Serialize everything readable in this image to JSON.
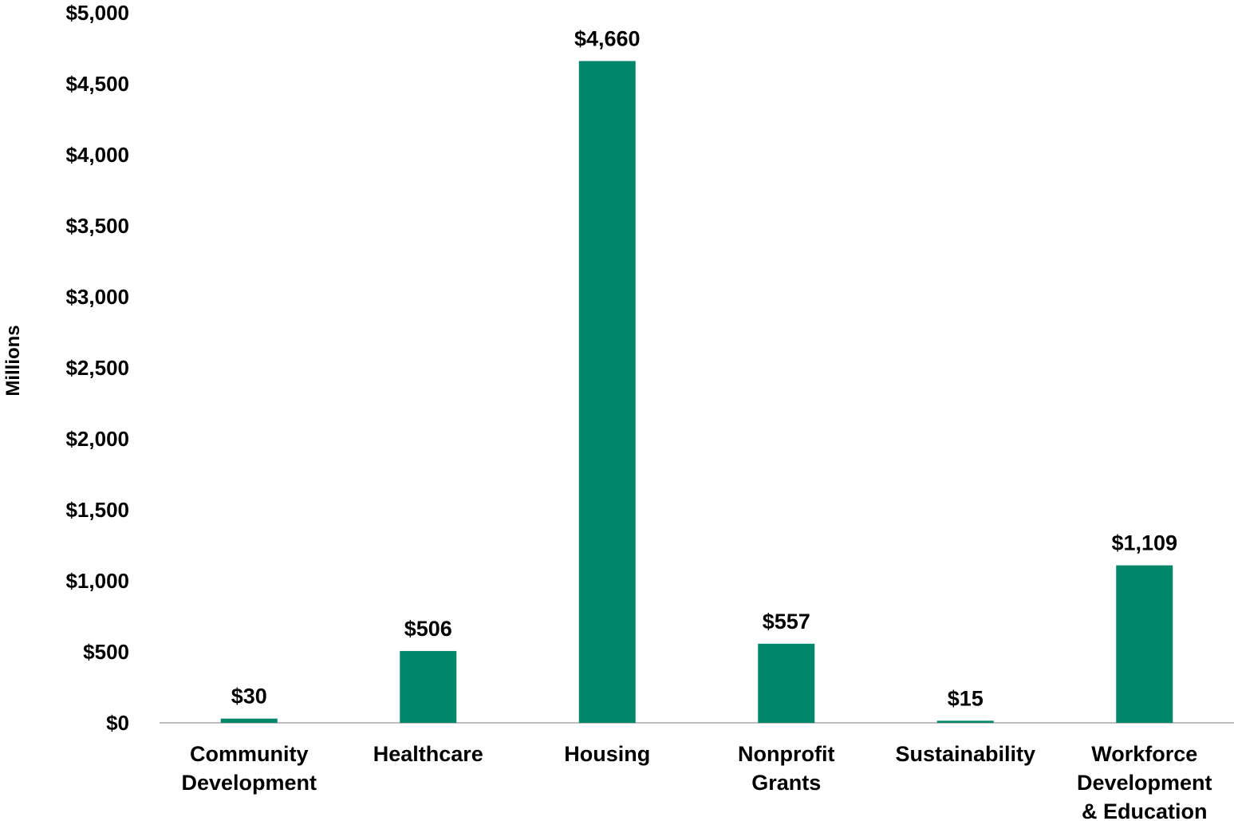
{
  "chart_data": {
    "type": "bar",
    "ylabel": "Millions",
    "ylim": [
      0,
      5000
    ],
    "ytick_step": 500,
    "yticks": [
      "$0",
      "$500",
      "$1,000",
      "$1,500",
      "$2,000",
      "$2,500",
      "$3,000",
      "$3,500",
      "$4,000",
      "$4,500",
      "$5,000"
    ],
    "categories": [
      [
        "Community",
        "Development"
      ],
      [
        "Healthcare"
      ],
      [
        "Housing"
      ],
      [
        "Nonprofit",
        "Grants"
      ],
      [
        "Sustainability"
      ],
      [
        "Workforce",
        "Development",
        "& Education"
      ]
    ],
    "values": [
      30,
      506,
      4660,
      557,
      15,
      1109
    ],
    "data_labels": [
      "$30",
      "$506",
      "$4,660",
      "$557",
      "$15",
      "$1,109"
    ],
    "bar_color": "#00876A",
    "axis_color": "#BFBFBF",
    "grid": false,
    "legend": "none"
  }
}
